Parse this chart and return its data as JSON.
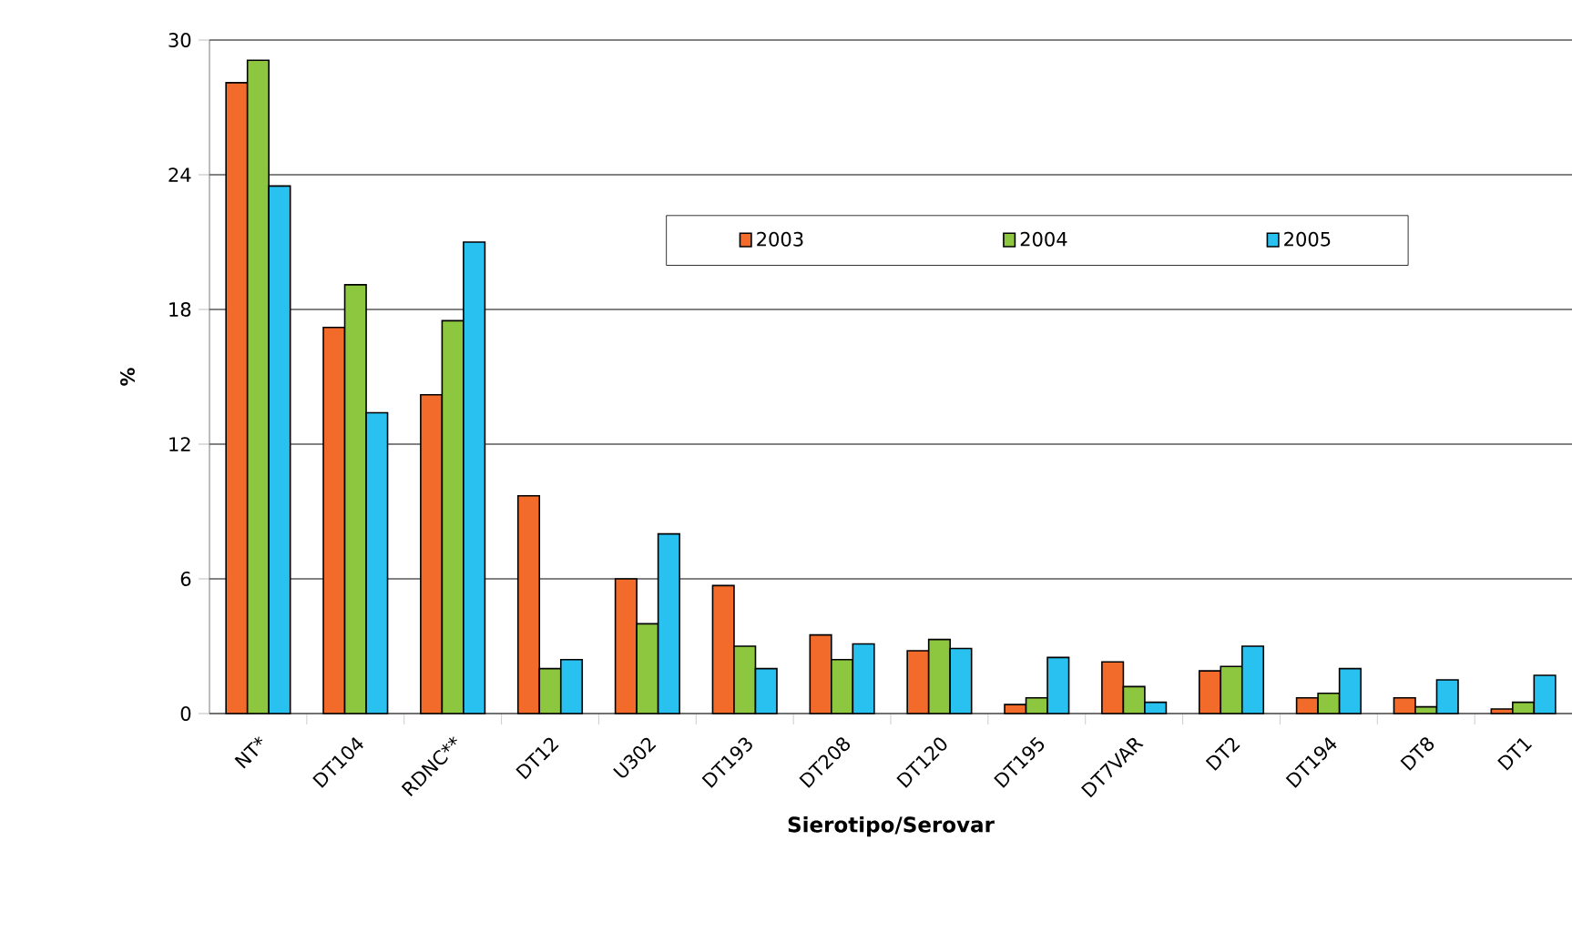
{
  "chart_data": {
    "type": "bar",
    "xlabel": "Sierotipo/Serovar",
    "ylabel": "%",
    "categories": [
      "NT*",
      "DT104",
      "RDNC**",
      "DT12",
      "U302",
      "DT193",
      "DT208",
      "DT120",
      "DT195",
      "DT7VAR",
      "DT2",
      "DT194",
      "DT8",
      "DT1"
    ],
    "series": [
      {
        "name": "2003",
        "color": "#f26b2a",
        "values": [
          28.1,
          17.2,
          14.2,
          9.7,
          6.0,
          5.7,
          3.5,
          2.8,
          0.4,
          2.3,
          1.9,
          0.7,
          0.7,
          0.2
        ]
      },
      {
        "name": "2004",
        "color": "#8dc63f",
        "values": [
          29.1,
          19.1,
          17.5,
          2.0,
          4.0,
          3.0,
          2.4,
          3.3,
          0.7,
          1.2,
          2.1,
          0.9,
          0.3,
          0.5
        ]
      },
      {
        "name": "2005",
        "color": "#29c1f0",
        "values": [
          23.5,
          13.4,
          21.0,
          2.4,
          8.0,
          2.0,
          3.1,
          2.9,
          2.5,
          0.5,
          3.0,
          2.0,
          1.5,
          1.7
        ]
      }
    ],
    "ylim": [
      0,
      30
    ],
    "yticks": [
      0,
      6,
      12,
      18,
      24,
      30
    ],
    "grid": "y",
    "legend": "top right"
  }
}
